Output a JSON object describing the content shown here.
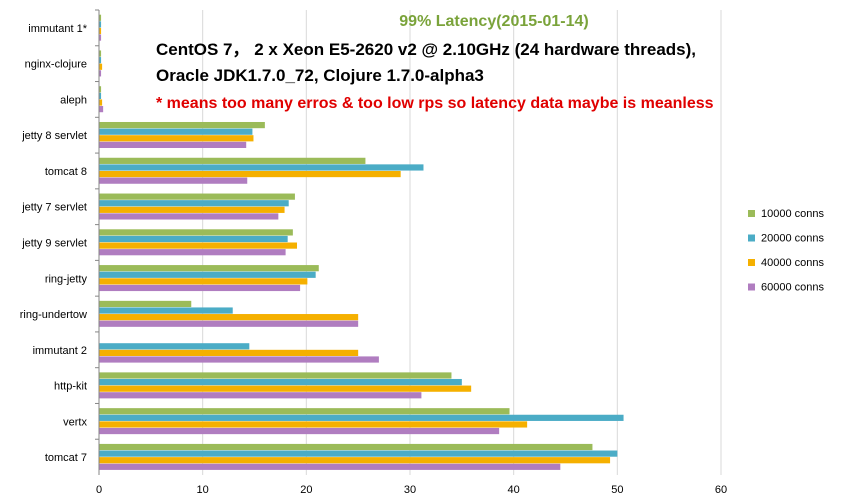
{
  "chart_data": {
    "type": "bar",
    "orientation": "horizontal",
    "title": "99% Latency(2015-01-14)",
    "subtitle_lines": [
      "CentOS 7，   2 x Xeon E5-2620 v2 @ 2.10GHz (24 hardware threads),",
      "Oracle JDK1.7.0_72,  Clojure  1.7.0-alpha3"
    ],
    "note": "* means too many erros & too low rps so latency data maybe is meanless",
    "categories": [
      "immutant 1*",
      "nginx-clojure",
      "aleph",
      "jetty 8 servlet",
      "tomcat 8",
      "jetty 7 servlet",
      "jetty 9 servlet",
      "ring-jetty",
      "ring-undertow",
      "immutant 2",
      "http-kit",
      "vertx",
      "tomcat 7"
    ],
    "series": [
      {
        "name": "10000 conns",
        "color": "#9BBB59",
        "values": [
          0.2,
          0.2,
          0.2,
          16,
          25.7,
          18.9,
          18.7,
          21.2,
          8.9,
          0,
          34,
          39.6,
          47.6
        ]
      },
      {
        "name": "20000 conns",
        "color": "#4BACC6",
        "values": [
          0.2,
          0.2,
          0.2,
          14.8,
          31.3,
          18.3,
          18.2,
          20.9,
          12.9,
          14.5,
          35,
          50.6,
          50
        ]
      },
      {
        "name": "40000 conns",
        "color": "#F5B000",
        "values": [
          0.2,
          0.3,
          0.3,
          14.9,
          29.1,
          17.9,
          19.1,
          20.1,
          25,
          25,
          35.9,
          41.3,
          49.3
        ]
      },
      {
        "name": "60000 conns",
        "color": "#B07DC0",
        "values": [
          0.2,
          0.2,
          0.4,
          14.2,
          14.3,
          17.3,
          18,
          19.4,
          25,
          27,
          31.1,
          38.6,
          44.5
        ]
      }
    ],
    "xlim": [
      0,
      60
    ],
    "xticks": [
      "0",
      "10",
      "20",
      "30",
      "40",
      "50",
      "60"
    ],
    "grid": true,
    "legend": "right",
    "colors": {
      "title": "#7AA33A",
      "note": "#E00000",
      "text": "#000000",
      "grid": "#D9D9D9",
      "axis": "#868686"
    }
  }
}
